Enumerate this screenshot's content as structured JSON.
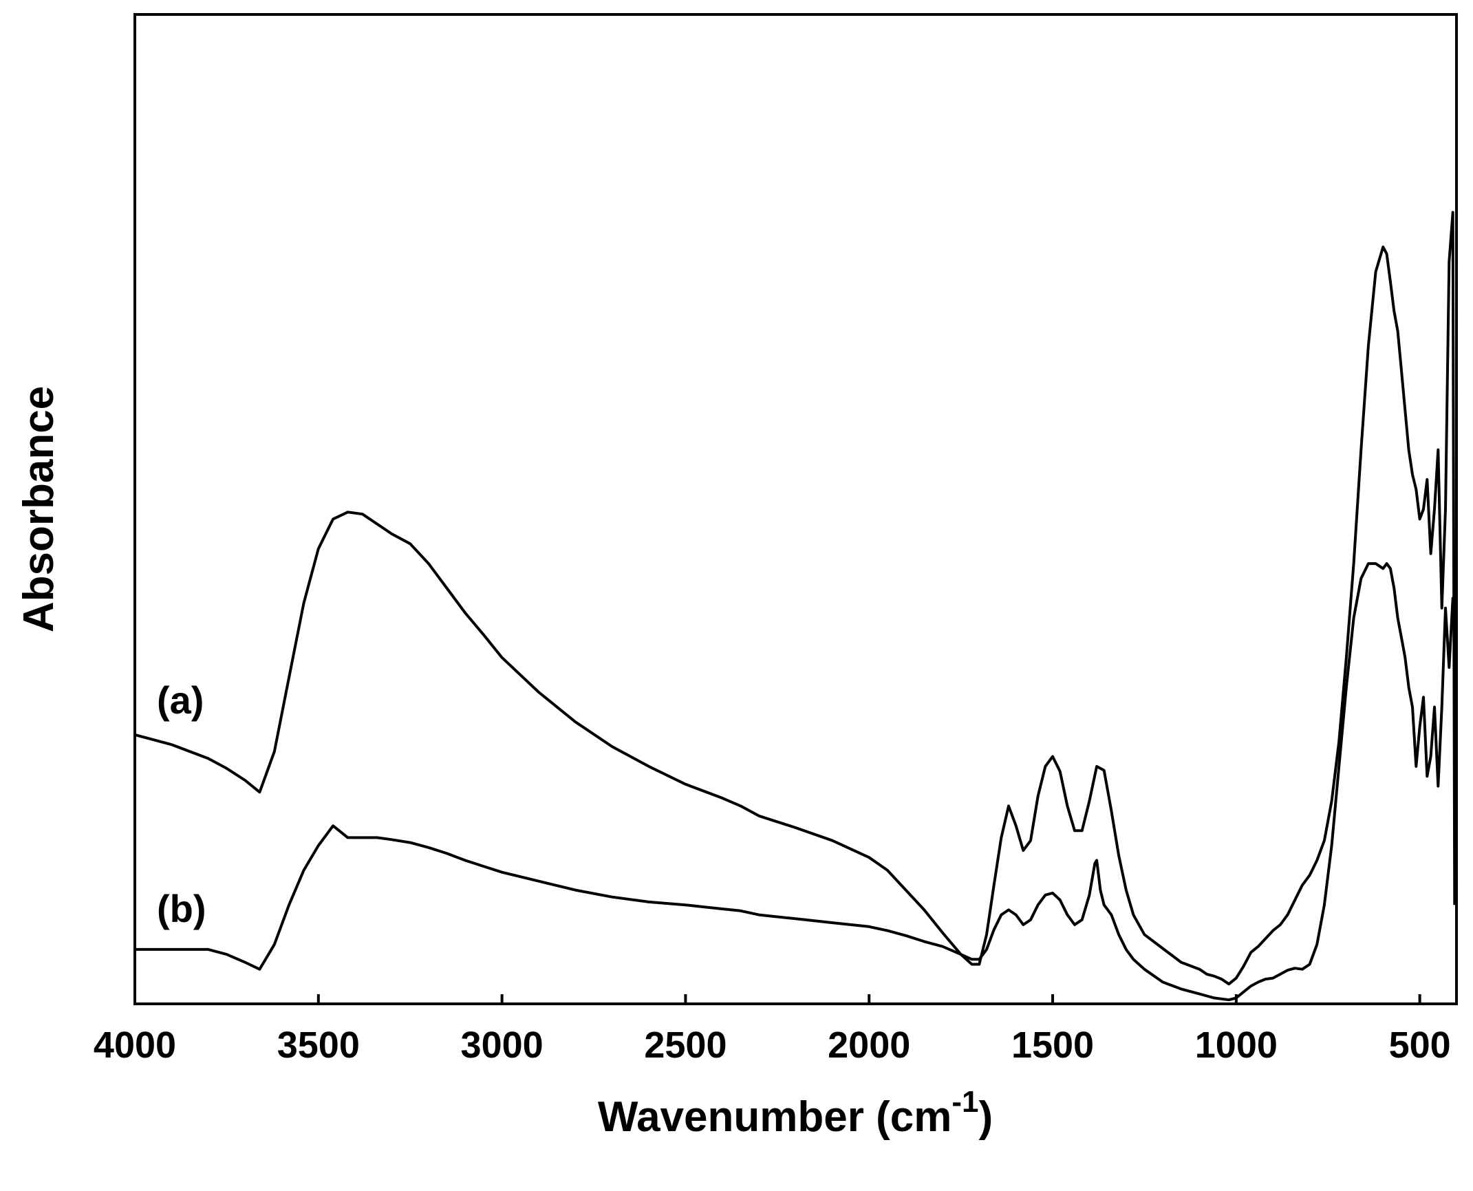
{
  "chart_data": {
    "type": "line",
    "title": "",
    "xlabel": "Wavenumber (cm",
    "xlabel_superscript": "-1",
    "xlabel_close": ")",
    "ylabel": "Absorbance",
    "xlim": [
      4000,
      400
    ],
    "x_reversed": true,
    "ylim": [
      0,
      1.0
    ],
    "y_ticks_shown": false,
    "grid": false,
    "legend": "none",
    "line_color": "#000000",
    "x_ticks": [
      4000,
      3500,
      3000,
      2500,
      2000,
      1500,
      1000,
      500
    ],
    "x_tick_labels": [
      "4000",
      "3500",
      "3000",
      "2500",
      "2000",
      "1500",
      "1000",
      "500"
    ],
    "series": [
      {
        "label": "(a)",
        "x": [
          4000,
          3900,
          3800,
          3750,
          3700,
          3660,
          3620,
          3580,
          3540,
          3500,
          3460,
          3420,
          3380,
          3340,
          3300,
          3250,
          3200,
          3150,
          3100,
          3050,
          3000,
          2900,
          2800,
          2700,
          2600,
          2500,
          2400,
          2350,
          2300,
          2200,
          2100,
          2000,
          1950,
          1900,
          1850,
          1800,
          1750,
          1720,
          1700,
          1680,
          1660,
          1640,
          1620,
          1600,
          1580,
          1560,
          1540,
          1520,
          1500,
          1480,
          1460,
          1440,
          1420,
          1400,
          1380,
          1360,
          1340,
          1320,
          1300,
          1280,
          1250,
          1200,
          1150,
          1100,
          1080,
          1060,
          1040,
          1020,
          1000,
          980,
          960,
          940,
          920,
          900,
          880,
          860,
          840,
          820,
          800,
          780,
          760,
          740,
          720,
          700,
          680,
          660,
          640,
          620,
          600,
          590,
          580,
          570,
          560,
          550,
          540,
          530,
          520,
          510,
          500,
          490,
          480,
          470,
          460,
          450,
          440,
          430,
          420,
          410,
          405
        ],
        "y": [
          0.272,
          0.262,
          0.248,
          0.238,
          0.226,
          0.214,
          0.255,
          0.33,
          0.405,
          0.46,
          0.49,
          0.497,
          0.495,
          0.485,
          0.475,
          0.465,
          0.445,
          0.42,
          0.395,
          0.373,
          0.35,
          0.315,
          0.285,
          0.26,
          0.24,
          0.222,
          0.208,
          0.2,
          0.19,
          0.178,
          0.165,
          0.148,
          0.135,
          0.115,
          0.095,
          0.072,
          0.05,
          0.04,
          0.04,
          0.07,
          0.12,
          0.168,
          0.2,
          0.18,
          0.155,
          0.165,
          0.21,
          0.24,
          0.25,
          0.235,
          0.2,
          0.175,
          0.175,
          0.205,
          0.24,
          0.236,
          0.195,
          0.15,
          0.115,
          0.09,
          0.07,
          0.056,
          0.042,
          0.035,
          0.03,
          0.028,
          0.025,
          0.02,
          0.026,
          0.038,
          0.052,
          0.058,
          0.066,
          0.074,
          0.08,
          0.09,
          0.105,
          0.12,
          0.13,
          0.145,
          0.165,
          0.205,
          0.265,
          0.35,
          0.445,
          0.56,
          0.665,
          0.74,
          0.765,
          0.758,
          0.73,
          0.7,
          0.68,
          0.64,
          0.6,
          0.56,
          0.535,
          0.52,
          0.49,
          0.5,
          0.53,
          0.455,
          0.5,
          0.56,
          0.4,
          0.5,
          0.75,
          0.8,
          0.1
        ]
      },
      {
        "label": "(b)",
        "x": [
          4000,
          3900,
          3800,
          3750,
          3700,
          3660,
          3620,
          3580,
          3540,
          3500,
          3460,
          3420,
          3380,
          3340,
          3300,
          3250,
          3200,
          3150,
          3100,
          3050,
          3000,
          2900,
          2800,
          2700,
          2600,
          2500,
          2400,
          2350,
          2300,
          2200,
          2100,
          2000,
          1950,
          1900,
          1850,
          1800,
          1750,
          1720,
          1700,
          1680,
          1660,
          1640,
          1620,
          1600,
          1580,
          1560,
          1540,
          1520,
          1500,
          1480,
          1460,
          1440,
          1420,
          1400,
          1385,
          1380,
          1370,
          1360,
          1340,
          1320,
          1300,
          1280,
          1250,
          1200,
          1150,
          1100,
          1080,
          1060,
          1040,
          1020,
          1000,
          980,
          960,
          940,
          920,
          900,
          880,
          860,
          840,
          820,
          800,
          780,
          760,
          740,
          720,
          700,
          680,
          660,
          640,
          620,
          600,
          590,
          580,
          570,
          560,
          550,
          540,
          530,
          520,
          510,
          500,
          490,
          480,
          470,
          460,
          450,
          440,
          430,
          420,
          410,
          405
        ],
        "y": [
          0.055,
          0.055,
          0.055,
          0.05,
          0.042,
          0.035,
          0.06,
          0.1,
          0.135,
          0.16,
          0.18,
          0.168,
          0.168,
          0.168,
          0.166,
          0.163,
          0.158,
          0.152,
          0.145,
          0.139,
          0.133,
          0.124,
          0.115,
          0.108,
          0.103,
          0.1,
          0.096,
          0.094,
          0.09,
          0.086,
          0.082,
          0.078,
          0.074,
          0.069,
          0.063,
          0.058,
          0.05,
          0.045,
          0.045,
          0.055,
          0.075,
          0.09,
          0.095,
          0.09,
          0.08,
          0.085,
          0.1,
          0.11,
          0.112,
          0.105,
          0.09,
          0.08,
          0.085,
          0.11,
          0.142,
          0.145,
          0.115,
          0.1,
          0.09,
          0.07,
          0.055,
          0.045,
          0.035,
          0.022,
          0.015,
          0.01,
          0.008,
          0.006,
          0.005,
          0.004,
          0.006,
          0.012,
          0.018,
          0.022,
          0.025,
          0.026,
          0.03,
          0.034,
          0.036,
          0.035,
          0.04,
          0.06,
          0.1,
          0.16,
          0.24,
          0.32,
          0.39,
          0.43,
          0.445,
          0.445,
          0.44,
          0.445,
          0.44,
          0.42,
          0.39,
          0.37,
          0.35,
          0.32,
          0.3,
          0.24,
          0.28,
          0.31,
          0.23,
          0.25,
          0.3,
          0.22,
          0.3,
          0.4,
          0.34,
          0.41,
          0.36
        ]
      }
    ]
  }
}
